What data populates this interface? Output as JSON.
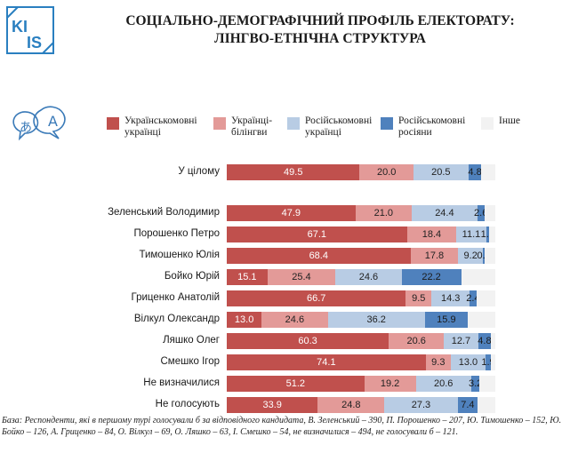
{
  "header": {
    "logo_text": "KI IS",
    "title_line1": "СОЦІАЛЬНО-ДЕМОГРАФІЧНИЙ ПРОФІЛЬ ЕЛЕКТОРАТУ:",
    "title_line2": "ЛІНГВО-ЕТНІЧНА СТРУКТУРА"
  },
  "legend": [
    {
      "label": "Українськомовні українці",
      "color": "#c0504d"
    },
    {
      "label": "Українці-білінгви",
      "color": "#e39a98"
    },
    {
      "label": "Російськомовні українці",
      "color": "#b8cce4"
    },
    {
      "label": "Російськомовні росіяни",
      "color": "#4f81bd"
    },
    {
      "label": "Інше",
      "color": "#f2f2f2"
    }
  ],
  "chart_data": {
    "type": "bar",
    "orientation": "horizontal",
    "stacked": true,
    "categories": [
      "У цілому",
      "Зеленський Володимир",
      "Порошенко Петро",
      "Тимошенко Юлія",
      "Бойко Юрій",
      "Гриценко Анатолій",
      "Вілкул Олександр",
      "Ляшко Олег",
      "Смешко Ігор",
      "Не визначилися",
      "Не голосують"
    ],
    "series": [
      {
        "name": "Українськомовні українці",
        "values": [
          49.5,
          47.9,
          67.1,
          68.4,
          15.1,
          66.7,
          13.0,
          60.3,
          74.1,
          51.2,
          33.9
        ]
      },
      {
        "name": "Українці-білінгви",
        "values": [
          20.0,
          21.0,
          18.4,
          17.8,
          25.4,
          9.5,
          24.6,
          20.6,
          9.3,
          19.2,
          24.8
        ]
      },
      {
        "name": "Російськомовні українці",
        "values": [
          20.5,
          24.4,
          11.1,
          9.2,
          24.6,
          14.3,
          36.2,
          12.7,
          13.0,
          20.6,
          27.3
        ]
      },
      {
        "name": "Російськомовні росіяни",
        "values": [
          4.8,
          2.6,
          1.0,
          0.7,
          22.2,
          2.4,
          15.9,
          4.8,
          1.9,
          3.2,
          7.4
        ]
      },
      {
        "name": "Інше",
        "values": [
          5.2,
          4.1,
          2.4,
          3.9,
          12.7,
          7.1,
          10.3,
          1.6,
          1.7,
          5.8,
          6.6
        ]
      }
    ],
    "data_labels": [
      [
        "49.5",
        "20.0",
        "20.5",
        "4.8"
      ],
      [
        "47.9",
        "21.0",
        "24.4",
        "2.6"
      ],
      [
        "67.1",
        "18.4",
        "11.1",
        "1.0"
      ],
      [
        "68.4",
        "17.8",
        "9.2",
        "0.7"
      ],
      [
        "15.1",
        "25.4",
        "24.6",
        "22.2"
      ],
      [
        "66.7",
        "9.5",
        "14.3",
        "2.4"
      ],
      [
        "13.0",
        "24.6",
        "36.2",
        "15.9"
      ],
      [
        "60.3",
        "20.6",
        "12.7",
        "4.8"
      ],
      [
        "74.1",
        "9.3",
        "13.0",
        "1.9"
      ],
      [
        "51.2",
        "19.2",
        "20.6",
        "3.2"
      ],
      [
        "33.9",
        "24.8",
        "27.3",
        "7.4"
      ]
    ],
    "xlim": [
      0,
      100
    ]
  },
  "footnote": "База: Респонденти, які в першому турі голосували б за відповідного кандидата, В. Зеленський – 390, П. Порошенко – 207, Ю. Тимошенко – 152, Ю. Бойко – 126, А. Гриценко – 84, О. Вілкул – 69, О. Ляшко – 63, І. Смешко – 54, не визначилися – 494, не голосували б – 121."
}
